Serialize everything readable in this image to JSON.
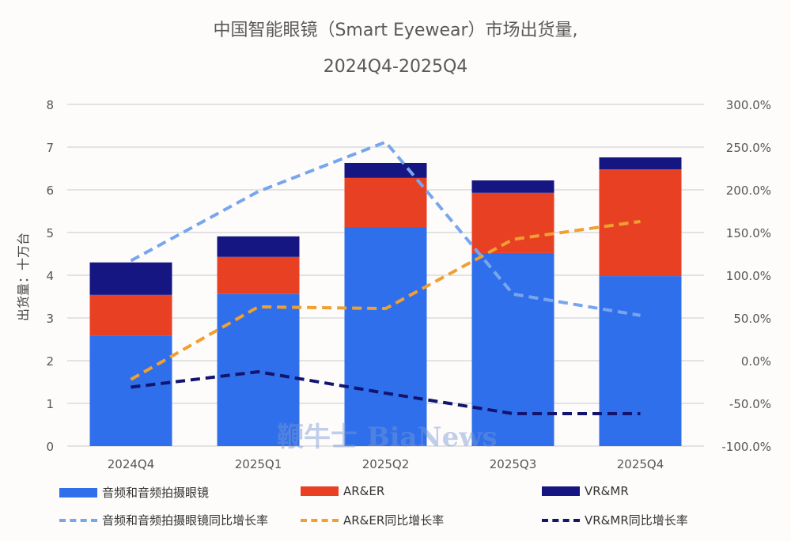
{
  "chart_data": {
    "type": "bar",
    "stacked": true,
    "title": "中国智能眼镜（Smart Eyewear）市场出货量,",
    "subtitle": "2024Q4-2025Q4",
    "ylabel": "出货量：十万台",
    "ylim": [
      0,
      8
    ],
    "y_ticks": [
      "0",
      "1",
      "2",
      "3",
      "4",
      "5",
      "6",
      "7",
      "8"
    ],
    "y2lim": [
      -100,
      300
    ],
    "y2_ticks": [
      "-100.0%",
      "-50.0%",
      "0.0%",
      "50.0%",
      "100.0%",
      "150.0%",
      "200.0%",
      "250.0%",
      "300.0%"
    ],
    "grid": true,
    "legend_position": "bottom",
    "categories": [
      "2024Q4",
      "2025Q1",
      "2025Q2",
      "2025Q3",
      "2025Q4"
    ],
    "series": [
      {
        "name": "音频和音频拍摄眼镜",
        "kind": "bar",
        "color": "#2f6fec",
        "values": [
          2.59,
          3.56,
          5.13,
          4.52,
          3.98
        ]
      },
      {
        "name": "AR&ER",
        "kind": "bar",
        "color": "#e84023",
        "values": [
          0.95,
          0.87,
          1.15,
          1.41,
          2.5
        ]
      },
      {
        "name": "VR&MR",
        "kind": "bar",
        "color": "#161682",
        "values": [
          0.76,
          0.48,
          0.35,
          0.29,
          0.28
        ]
      },
      {
        "name": "音频和音频拍摄眼镜同比增长率",
        "kind": "line",
        "axis": "right",
        "color": "#78a6ee",
        "values": [
          117,
          198,
          256,
          78,
          53
        ]
      },
      {
        "name": "AR&ER同比增长率",
        "kind": "line",
        "axis": "right",
        "color": "#f0a030",
        "values": [
          -22,
          63,
          61,
          142,
          163
        ]
      },
      {
        "name": "VR&MR同比增长率",
        "kind": "line",
        "axis": "right",
        "color": "#12146e",
        "values": [
          -31,
          -13,
          -38,
          -62,
          -62
        ]
      }
    ]
  },
  "watermark": "鞭牛士 BiaNews"
}
